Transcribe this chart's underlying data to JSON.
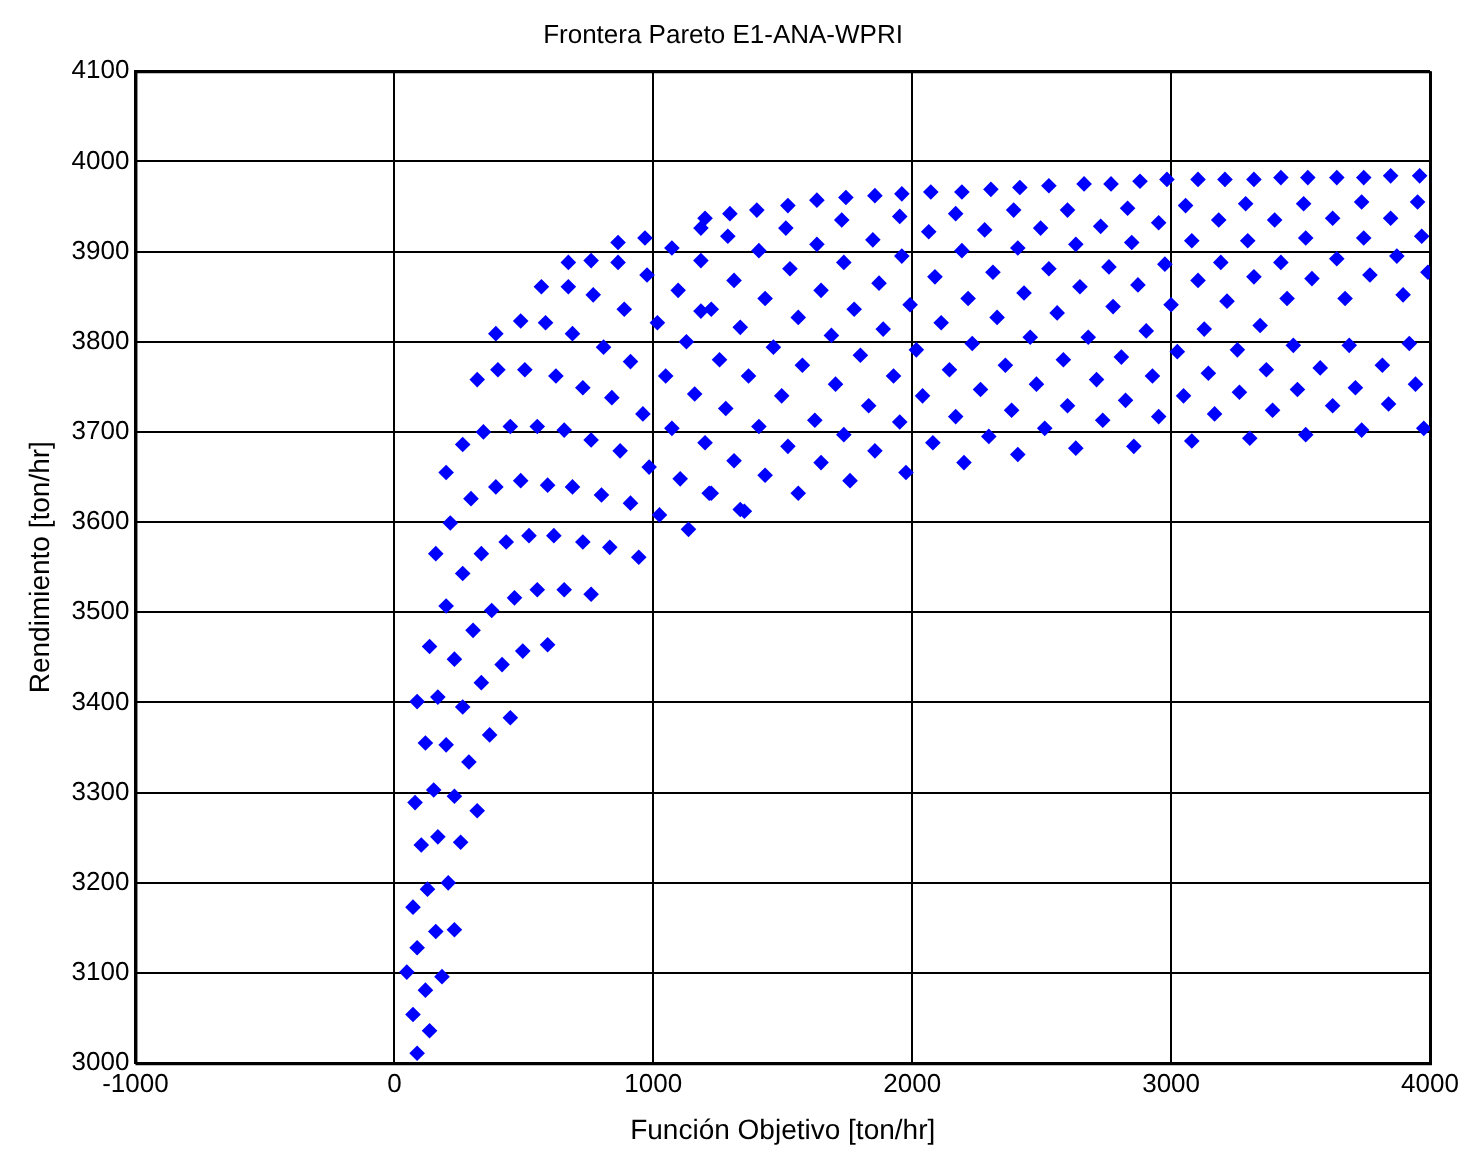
{
  "chart_data": {
    "type": "scatter",
    "title": "Frontera Pareto E1-ANA-WPRI",
    "xlabel": "Función Objetivo [ton/hr]",
    "ylabel": "Rendimiento [ton/hr]",
    "xlim": [
      -1000,
      4000
    ],
    "xticks": [
      -1000,
      0,
      1000,
      2000,
      3000,
      4000
    ],
    "ylim": [
      3000,
      4100
    ],
    "yticks": [
      3000,
      3100,
      3200,
      3300,
      3400,
      3500,
      3600,
      3700,
      3800,
      3900,
      4000,
      4100
    ],
    "grid": true,
    "legend": false,
    "marker": "diamond",
    "series": [
      {
        "color": "#0000ff",
        "x": [
          88,
          136,
          72,
          120,
          48,
          184,
          88,
          160,
          232,
          72,
          128,
          208,
          104,
          168,
          256,
          80,
          152,
          232,
          320,
          120,
          200,
          288,
          368,
          448,
          88,
          168,
          264,
          336,
          416,
          496,
          592,
          136,
          232,
          304,
          200,
          376,
          464,
          552,
          656,
          760,
          160,
          264,
          336,
          432,
          520,
          616,
          728,
          832,
          944,
          216,
          296,
          392,
          488,
          592,
          688,
          800,
          912,
          1024,
          1136,
          200,
          264,
          344,
          448,
          552,
          656,
          760,
          872,
          984,
          1104,
          1216,
          1336,
          320,
          400,
          504,
          624,
          728,
          840,
          960,
          1072,
          1200,
          1280,
          1160,
          1048,
          912,
          808,
          688,
          584,
          488,
          392,
          568,
          672,
          768,
          888,
          1016,
          1128,
          1256,
          672,
          760,
          864,
          976,
          1096,
          1184,
          1312,
          1184,
          1072,
          968,
          864,
          1200,
          1296,
          1400,
          1520,
          1632,
          1744,
          1856,
          1960,
          2072,
          2192,
          2304,
          2416,
          2528,
          1288,
          1512,
          1728,
          1952,
          2064,
          2168,
          2280,
          2392,
          2496,
          1184,
          1408,
          1528,
          1632,
          1736,
          1848,
          1960,
          2088,
          2192,
          2312,
          2408,
          2528,
          1224,
          1432,
          1560,
          1648,
          1776,
          1872,
          1888,
          1992,
          2112,
          2216,
          2328,
          2432,
          2560,
          1336,
          1464,
          1576,
          1688,
          1800,
          2016,
          2144,
          2232,
          2360,
          2456,
          2584,
          1368,
          1496,
          1704,
          1832,
          1928,
          2040,
          2168,
          2264,
          2384,
          2480,
          2600,
          1408,
          1312,
          1520,
          1624,
          1736,
          1856,
          1952,
          2080,
          2200,
          2296,
          2408,
          2512,
          1224,
          1352,
          1432,
          1560,
          1648,
          1760,
          1976,
          2664,
          2768,
          2880,
          2984,
          3104,
          3208,
          3320,
          3424,
          3528,
          3640,
          3744,
          3848,
          3960,
          2600,
          2728,
          2832,
          2952,
          3056,
          3184,
          3288,
          3400,
          3512,
          3624,
          3736,
          3848,
          3952,
          2632,
          2760,
          2848,
          2976,
          3080,
          3192,
          3296,
          3424,
          3520,
          3640,
          3744,
          3872,
          3968,
          2648,
          2776,
          2872,
          3000,
          3104,
          3216,
          3320,
          3448,
          3544,
          3672,
          3768,
          3896,
          3992,
          2680,
          2808,
          2904,
          3024,
          3128,
          3256,
          3344,
          3472,
          3576,
          3688,
          3816,
          3920,
          3368,
          3144,
          2928,
          2712,
          2824,
          3048,
          3264,
          3488,
          3712,
          3944,
          2736,
          2952,
          3168,
          3392,
          3624,
          3840,
          2632,
          2856,
          3080,
          3304,
          3520,
          3736,
          3976
        ],
        "values": [
          3011,
          3036,
          3054,
          3081,
          3101,
          3096,
          3128,
          3146,
          3148,
          3173,
          3193,
          3200,
          3242,
          3251,
          3245,
          3289,
          3303,
          3296,
          3280,
          3355,
          3353,
          3334,
          3364,
          3383,
          3401,
          3406,
          3395,
          3422,
          3442,
          3457,
          3464,
          3462,
          3448,
          3480,
          3507,
          3502,
          3516,
          3525,
          3525,
          3520,
          3565,
          3543,
          3565,
          3578,
          3585,
          3585,
          3578,
          3572,
          3561,
          3599,
          3626,
          3639,
          3646,
          3641,
          3639,
          3630,
          3621,
          3608,
          3592,
          3655,
          3686,
          3700,
          3706,
          3706,
          3702,
          3691,
          3679,
          3661,
          3648,
          3632,
          3614,
          3758,
          3769,
          3769,
          3762,
          3749,
          3738,
          3720,
          3704,
          3688,
          3726,
          3742,
          3762,
          3778,
          3794,
          3809,
          3821,
          3823,
          3809,
          3861,
          3861,
          3852,
          3836,
          3821,
          3800,
          3780,
          3888,
          3890,
          3888,
          3874,
          3857,
          3834,
          3868,
          3890,
          3904,
          3915,
          3910,
          3937,
          3942,
          3946,
          3951,
          3957,
          3960,
          3962,
          3964,
          3966,
          3966,
          3969,
          3971,
          3973,
          3917,
          3926,
          3935,
          3939,
          3922,
          3942,
          3924,
          3946,
          3926,
          3926,
          3901,
          3881,
          3908,
          3888,
          3913,
          3895,
          3872,
          3901,
          3877,
          3904,
          3881,
          3836,
          3848,
          3827,
          3857,
          3836,
          3865,
          3814,
          3841,
          3821,
          3848,
          3827,
          3854,
          3832,
          3816,
          3794,
          3774,
          3807,
          3785,
          3791,
          3769,
          3798,
          3774,
          3805,
          3780,
          3762,
          3740,
          3753,
          3729,
          3762,
          3740,
          3717,
          3747,
          3724,
          3753,
          3729,
          3706,
          3668,
          3684,
          3713,
          3697,
          3679,
          3711,
          3688,
          3666,
          3695,
          3675,
          3704,
          3632,
          3612,
          3652,
          3632,
          3666,
          3646,
          3655,
          3975,
          3975,
          3978,
          3980,
          3980,
          3980,
          3980,
          3982,
          3982,
          3982,
          3982,
          3984,
          3984,
          3946,
          3928,
          3948,
          3932,
          3951,
          3935,
          3953,
          3935,
          3953,
          3937,
          3955,
          3937,
          3955,
          3908,
          3883,
          3910,
          3886,
          3912,
          3888,
          3912,
          3888,
          3915,
          3892,
          3915,
          3895,
          3917,
          3861,
          3839,
          3863,
          3841,
          3868,
          3845,
          3872,
          3848,
          3870,
          3848,
          3874,
          3852,
          3877,
          3805,
          3783,
          3812,
          3789,
          3814,
          3791,
          3818,
          3796,
          3771,
          3796,
          3774,
          3798,
          3769,
          3765,
          3762,
          3758,
          3735,
          3740,
          3744,
          3747,
          3749,
          3753,
          3713,
          3717,
          3720,
          3724,
          3729,
          3731,
          3682,
          3684,
          3690,
          3693,
          3697,
          3702,
          3704
        ]
      }
    ]
  }
}
